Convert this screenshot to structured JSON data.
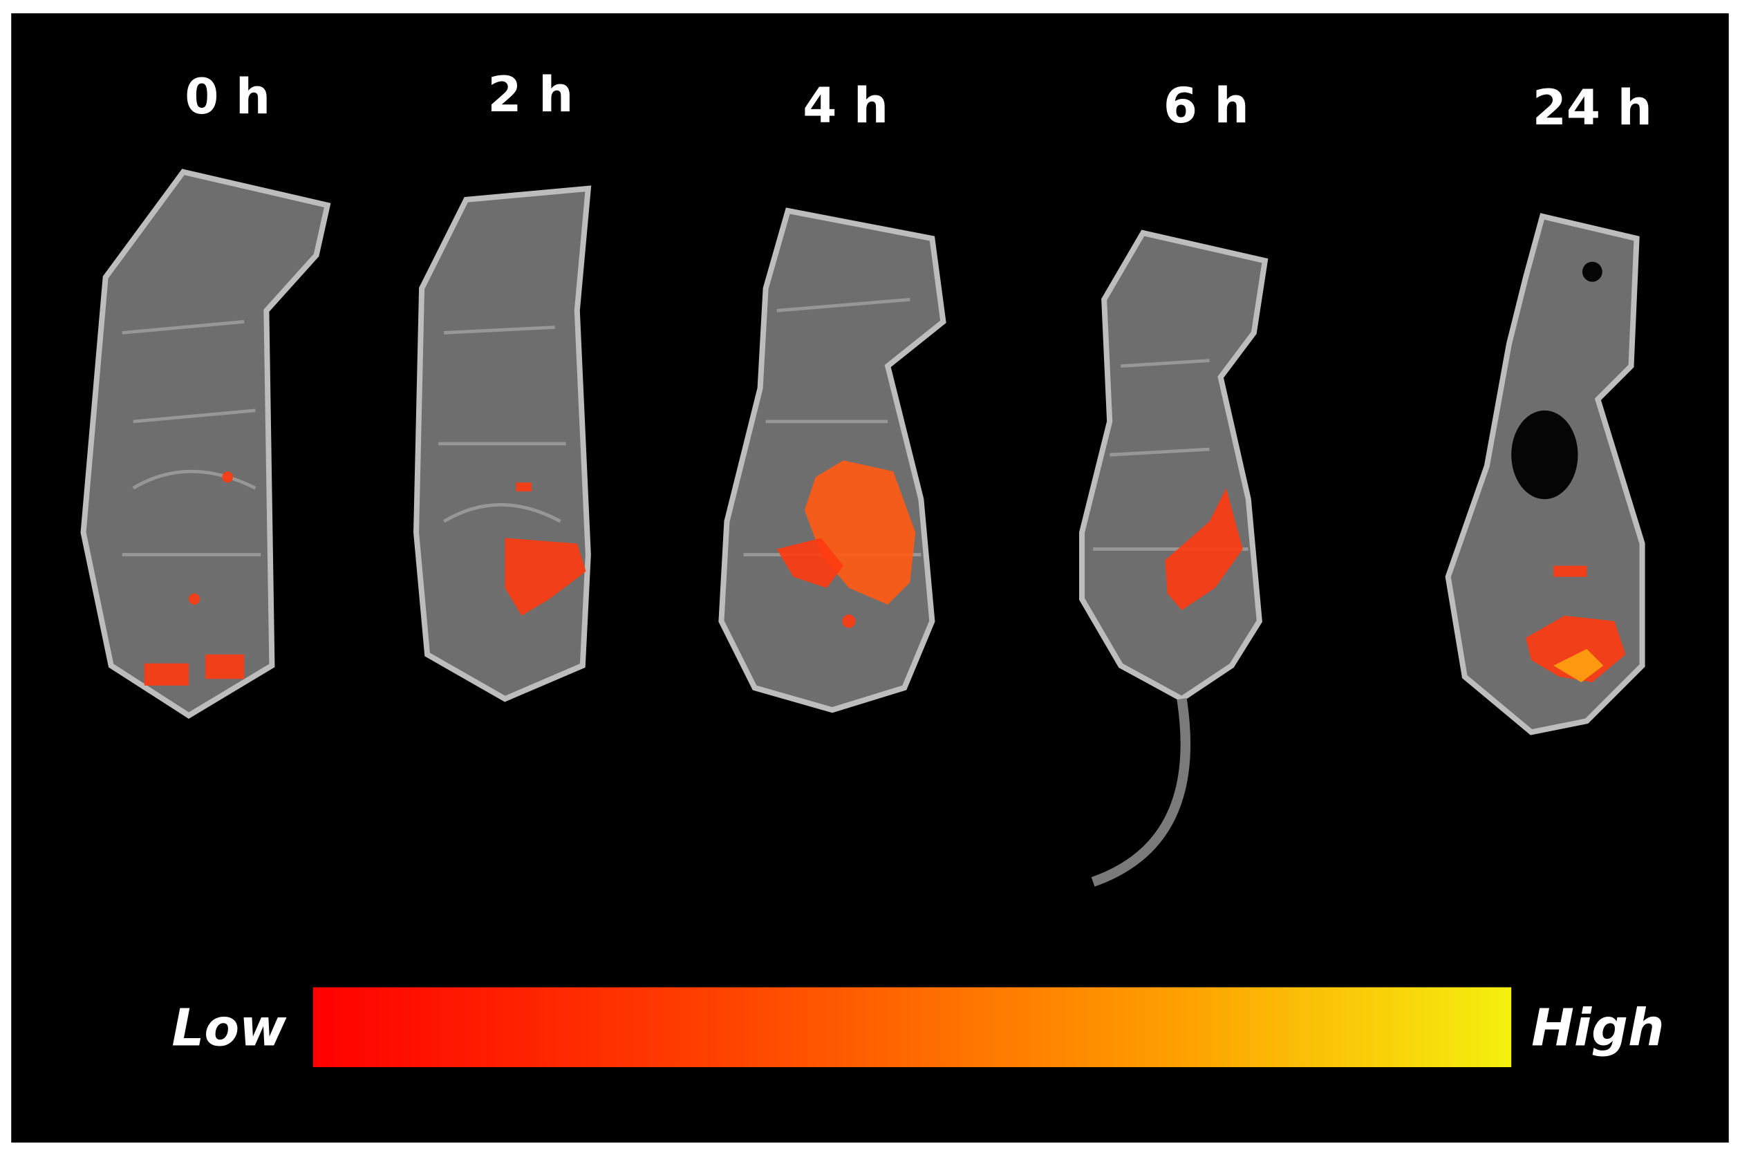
{
  "time_labels": [
    "0 h",
    "2 h",
    "4 h",
    "6 h",
    "24 h"
  ],
  "scale": {
    "low": "Low",
    "high": "High"
  }
}
